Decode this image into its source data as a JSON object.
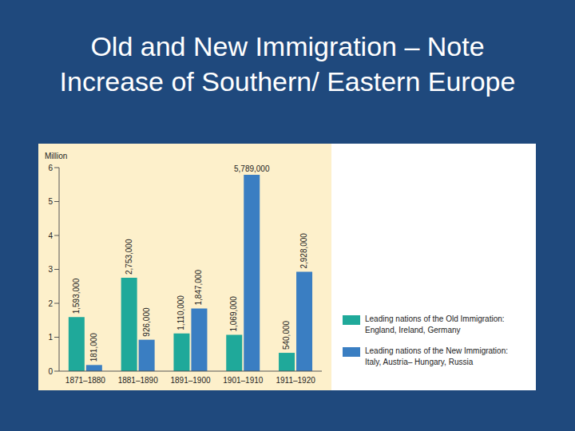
{
  "chart_data": {
    "type": "bar",
    "title": "Old and New Immigration – Note Increase of Southern/ Eastern Europe",
    "ylabel": "Million",
    "categories": [
      "1871–1880",
      "1881–1890",
      "1891–1900",
      "1901–1910",
      "1911–1920"
    ],
    "series": [
      {
        "name": "Leading nations of the Old Immigration: England, Ireland, Germany",
        "color": "#1fa99a",
        "values": [
          1.593,
          2.753,
          1.11,
          1.069,
          0.54
        ],
        "value_labels": [
          "1,593,000",
          "2,753,000",
          "1,110,000",
          "1,069,000",
          "540,000"
        ]
      },
      {
        "name": "Leading nations of the New Immigration: Italy, Austria– Hungary, Russia",
        "color": "#3a7ec2",
        "values": [
          0.181,
          0.926,
          1.847,
          5.789,
          2.928
        ],
        "value_labels": [
          "181,000",
          "926,000",
          "1,847,000",
          "5,789,000",
          "2,928,000"
        ]
      }
    ],
    "ylim": [
      0,
      6
    ],
    "yticks": [
      0,
      1,
      2,
      3,
      4,
      5,
      6
    ],
    "legend": "right",
    "data_labels": true,
    "grid": false
  }
}
